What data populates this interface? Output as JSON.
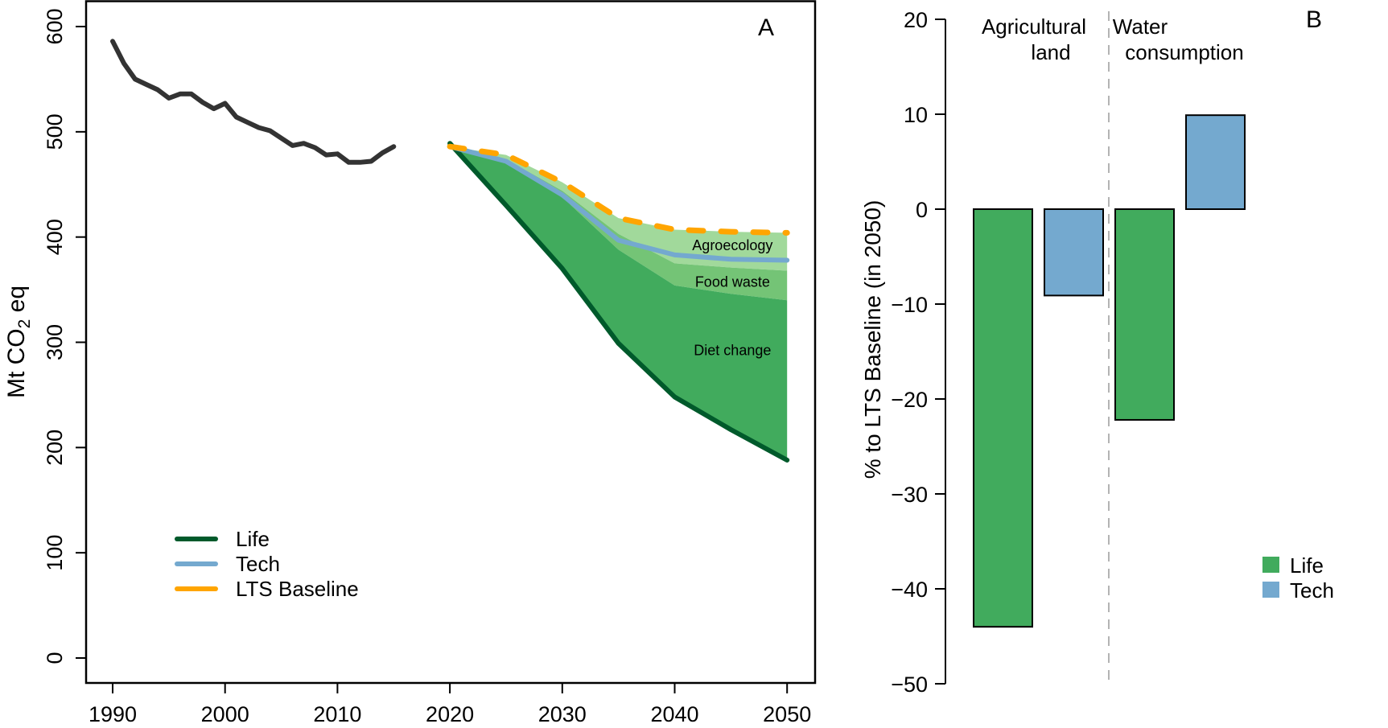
{
  "chart_data": [
    {
      "panel": "A",
      "type": "area",
      "title": "",
      "panel_label": "A",
      "xlabel": "",
      "ylabel": "Mt CO2 eq",
      "ylabel_parts": {
        "pre": "Mt CO",
        "sub": "2",
        "post": " eq"
      },
      "xlim": [
        1987.6,
        2052.4
      ],
      "ylim": [
        -24,
        624
      ],
      "xticks": [
        1990,
        2000,
        2010,
        2020,
        2030,
        2040,
        2050
      ],
      "yticks": [
        0,
        100,
        200,
        300,
        400,
        500,
        600
      ],
      "grid": false,
      "legend_position": "bottom-left",
      "historical": {
        "name": "Historical",
        "color": "#333333",
        "x": [
          1990,
          1991,
          1992,
          1993,
          1994,
          1995,
          1996,
          1997,
          1998,
          1999,
          2000,
          2001,
          2002,
          2003,
          2004,
          2005,
          2006,
          2007,
          2008,
          2009,
          2010,
          2011,
          2012,
          2013,
          2014,
          2015
        ],
        "y": [
          586,
          565,
          550,
          545,
          540,
          532,
          536,
          536,
          528,
          522,
          527,
          514,
          509,
          504,
          501,
          494,
          487,
          489,
          485,
          478,
          479,
          471,
          471,
          472,
          480,
          486
        ]
      },
      "scenario_years": [
        2020,
        2025,
        2030,
        2035,
        2040,
        2045,
        2050
      ],
      "series": [
        {
          "name": "Life",
          "color": "#005a2b",
          "style": "solid",
          "values": [
            489,
            430,
            370,
            299,
            248,
            217,
            188
          ]
        },
        {
          "name": "Tech",
          "color": "#74a9cf",
          "style": "solid",
          "values": [
            486,
            472,
            440,
            397,
            383,
            379,
            378
          ]
        },
        {
          "name": "LTS Baseline",
          "color": "#ffa500",
          "style": "dashed",
          "values": [
            486,
            478,
            452,
            418,
            407,
            405,
            404
          ]
        }
      ],
      "bands": [
        {
          "name": "Agroecology",
          "color": "#a1d99b",
          "upper": [
            486,
            478,
            452,
            418,
            407,
            405,
            404
          ],
          "lower": [
            486,
            474,
            444,
            403,
            375,
            371,
            368
          ]
        },
        {
          "name": "Food waste",
          "color": "#74c476",
          "upper": [
            486,
            474,
            444,
            403,
            375,
            371,
            368
          ],
          "lower": [
            486,
            471,
            438,
            388,
            354,
            346,
            340
          ]
        },
        {
          "name": "Diet change",
          "color": "#41ab5d",
          "upper": [
            486,
            471,
            438,
            388,
            354,
            346,
            340
          ],
          "lower": [
            489,
            430,
            370,
            299,
            248,
            217,
            188
          ]
        }
      ],
      "legend": [
        "Life",
        "Tech",
        "LTS Baseline"
      ]
    },
    {
      "panel": "B",
      "type": "bar",
      "title": "",
      "panel_label": "B",
      "xlabel": "",
      "ylabel": "% to LTS Baseline (in 2050)",
      "ylim": [
        -50,
        20
      ],
      "yticks": [
        20,
        10,
        0,
        -10,
        -20,
        -30,
        -40,
        -50
      ],
      "ytick_labels": [
        "20",
        "10",
        "0",
        "−10",
        "−20",
        "−30",
        "−40",
        "−50"
      ],
      "grid": false,
      "legend_position": "bottom-right",
      "categories": [
        {
          "label_lines": [
            "Agricultural",
            "land"
          ]
        },
        {
          "label_lines": [
            "Water",
            "consumption"
          ]
        }
      ],
      "series": [
        {
          "name": "Life",
          "color": "#41ab5d",
          "values": [
            -44.0,
            -22.2
          ]
        },
        {
          "name": "Tech",
          "color": "#74a9cf",
          "values": [
            -9.1,
            9.9
          ]
        }
      ],
      "legend": [
        "Life",
        "Tech"
      ]
    }
  ]
}
